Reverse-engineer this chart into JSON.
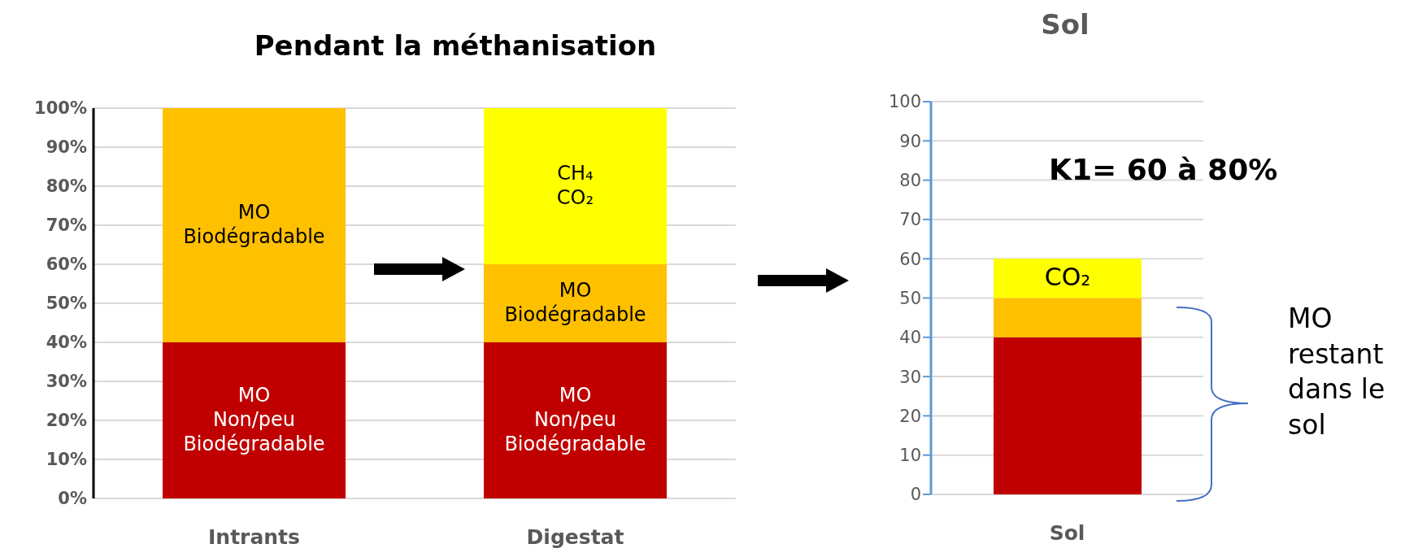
{
  "chart_data": [
    {
      "type": "bar",
      "stacked": true,
      "title": "Pendant la méthanisation",
      "categories": [
        "Intrants",
        "Digestat"
      ],
      "series": [
        {
          "name": "MO Non/peu Biodégradable",
          "color": "#c00000",
          "values": [
            40,
            40
          ]
        },
        {
          "name": "MO Biodégradable",
          "color": "#ffc000",
          "values": [
            60,
            20
          ]
        },
        {
          "name": "CH₄ CO₂",
          "color": "#ffff00",
          "values": [
            null,
            40
          ]
        }
      ],
      "ylim": [
        0,
        100
      ],
      "yticks": [
        {
          "value": 0,
          "label": "0%"
        },
        {
          "value": 10,
          "label": "10%"
        },
        {
          "value": 20,
          "label": "20%"
        },
        {
          "value": 30,
          "label": "30%"
        },
        {
          "value": 40,
          "label": "40%"
        },
        {
          "value": 50,
          "label": "50%"
        },
        {
          "value": 60,
          "label": "60%"
        },
        {
          "value": 70,
          "label": "70%"
        },
        {
          "value": 80,
          "label": "80%"
        },
        {
          "value": 90,
          "label": "90%"
        },
        {
          "value": 100,
          "label": "100%"
        }
      ],
      "grid": "y",
      "legend": false
    },
    {
      "type": "bar",
      "stacked": true,
      "title": "Sol",
      "categories": [
        "Sol"
      ],
      "series": [
        {
          "color": "#c00000",
          "values": [
            40
          ]
        },
        {
          "color": "#ffc000",
          "values": [
            10
          ]
        },
        {
          "name": "CO₂",
          "color": "#ffff00",
          "values": [
            10
          ]
        }
      ],
      "ylim": [
        0,
        100
      ],
      "yticks": [
        0,
        10,
        20,
        30,
        40,
        50,
        60,
        70,
        80,
        90,
        100
      ],
      "grid": "y",
      "legend": false,
      "annotations": [
        "K1= 60 à 80%",
        "MO restant dans le sol"
      ]
    }
  ]
}
